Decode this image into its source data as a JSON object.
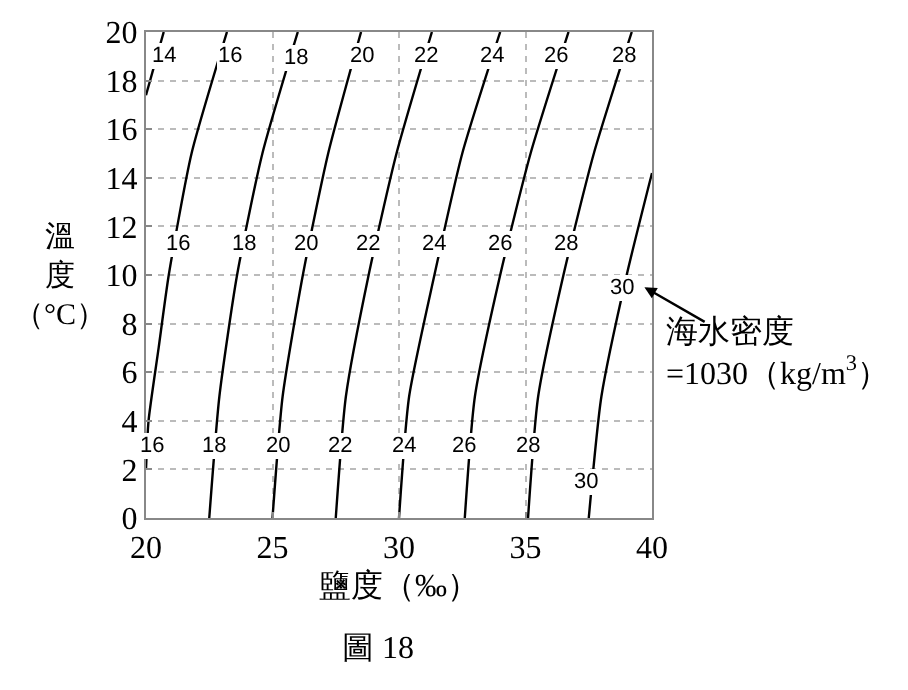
{
  "chart_data": {
    "type": "line",
    "xlabel": "鹽度（‰）",
    "ylabel": "溫度（°C）",
    "xlim": [
      20,
      40
    ],
    "xticks": [
      20,
      25,
      30,
      35,
      40
    ],
    "ylim": [
      0,
      20
    ],
    "yticks": [
      0,
      2,
      4,
      6,
      8,
      10,
      12,
      14,
      16,
      18,
      20
    ],
    "grid": true,
    "marker": "none",
    "line_style": "solid",
    "series": [
      {
        "color": "#000000",
        "x": [
          20.0,
          20.7
        ],
        "values": [
          17.4,
          20
        ]
      },
      {
        "color": "#000000",
        "x": [
          20.0,
          20.1,
          20.5,
          20.9,
          21.8,
          23.2
        ],
        "values": [
          2,
          4,
          7,
          10,
          15,
          20
        ]
      },
      {
        "color": "#000000",
        "x": [
          22.5,
          22.9,
          23.6,
          24.6,
          26.0
        ],
        "values": [
          0,
          5,
          10,
          15,
          20
        ]
      },
      {
        "color": "#000000",
        "x": [
          25.0,
          25.4,
          26.2,
          27.2,
          28.5
        ],
        "values": [
          0,
          5,
          10,
          15,
          20
        ]
      },
      {
        "color": "#000000",
        "x": [
          27.5,
          27.9,
          28.8,
          29.9,
          31.3
        ],
        "values": [
          0,
          5,
          10,
          15,
          20
        ]
      },
      {
        "color": "#000000",
        "x": [
          30.0,
          30.4,
          31.4,
          32.5,
          34.0
        ],
        "values": [
          0,
          5,
          10,
          15,
          20
        ]
      },
      {
        "color": "#000000",
        "x": [
          32.6,
          33.0,
          34.0,
          35.2,
          36.7
        ],
        "values": [
          0,
          5,
          10,
          15,
          20
        ]
      },
      {
        "color": "#000000",
        "x": [
          35.1,
          35.5,
          36.5,
          37.7,
          39.2
        ],
        "values": [
          0,
          5,
          10,
          15,
          20
        ]
      },
      {
        "color": "#000000",
        "x": [
          37.5,
          38.0,
          39.0,
          40.0
        ],
        "values": [
          0,
          5,
          10,
          14.2
        ]
      }
    ],
    "annotations": [
      {
        "text": "14",
        "x": 20.7,
        "y": 19.0
      },
      {
        "text": "16",
        "x": 23.3,
        "y": 19.0
      },
      {
        "text": "18",
        "x": 25.9,
        "y": 18.9
      },
      {
        "text": "20",
        "x": 28.5,
        "y": 19.0
      },
      {
        "text": "22",
        "x": 31.1,
        "y": 19.0
      },
      {
        "text": "24",
        "x": 33.7,
        "y": 19.0
      },
      {
        "text": "26",
        "x": 36.2,
        "y": 19.0
      },
      {
        "text": "28",
        "x": 38.9,
        "y": 19.0
      },
      {
        "text": "16",
        "x": 21.3,
        "y": 11.3
      },
      {
        "text": "18",
        "x": 23.9,
        "y": 11.3
      },
      {
        "text": "20",
        "x": 26.3,
        "y": 11.3
      },
      {
        "text": "22",
        "x": 28.8,
        "y": 11.3
      },
      {
        "text": "24",
        "x": 31.4,
        "y": 11.3
      },
      {
        "text": "26",
        "x": 34.0,
        "y": 11.3
      },
      {
        "text": "28",
        "x": 36.6,
        "y": 11.3
      },
      {
        "text": "30",
        "x": 38.8,
        "y": 9.5
      },
      {
        "text": "16",
        "x": 20.2,
        "y": 3.0
      },
      {
        "text": "18",
        "x": 22.7,
        "y": 3.0
      },
      {
        "text": "20",
        "x": 25.2,
        "y": 3.0
      },
      {
        "text": "22",
        "x": 27.7,
        "y": 3.0
      },
      {
        "text": "24",
        "x": 30.2,
        "y": 3.0
      },
      {
        "text": "26",
        "x": 32.6,
        "y": 3.0
      },
      {
        "text": "28",
        "x": 35.1,
        "y": 3.0
      },
      {
        "text": "30",
        "x": 37.4,
        "y": 1.5
      },
      "海水密度\n=1030（kg/m$^{3}$）",
      "圖 18"
    ]
  }
}
